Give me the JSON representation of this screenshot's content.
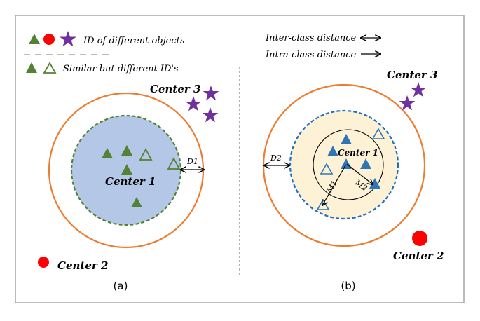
{
  "legend": {
    "id_label": "ID of different objects",
    "similar_label": "Similar but different ID's",
    "inter_label": "Inter-class distance",
    "intra_label": "Intra-class distance"
  },
  "panel_a": {
    "center1": "Center 1",
    "center2": "Center 2",
    "center3": "Center 3",
    "d1": "D1",
    "caption": "(a)"
  },
  "panel_b": {
    "center1": "Center 1",
    "center2": "Center 2",
    "center3": "Center 3",
    "d2": "D2",
    "m1": "M1",
    "m2": "M2",
    "caption": "(b)"
  },
  "colors": {
    "orange_ring": "#ed7d31",
    "green": "#548235",
    "blue_fill": "#b4c7e7",
    "blue_marker": "#2e75b6",
    "dashed_blue": "#1f6fc1",
    "yellow_fill": "#fdf1d6",
    "purple": "#7030a0",
    "red": "#ff0000"
  }
}
